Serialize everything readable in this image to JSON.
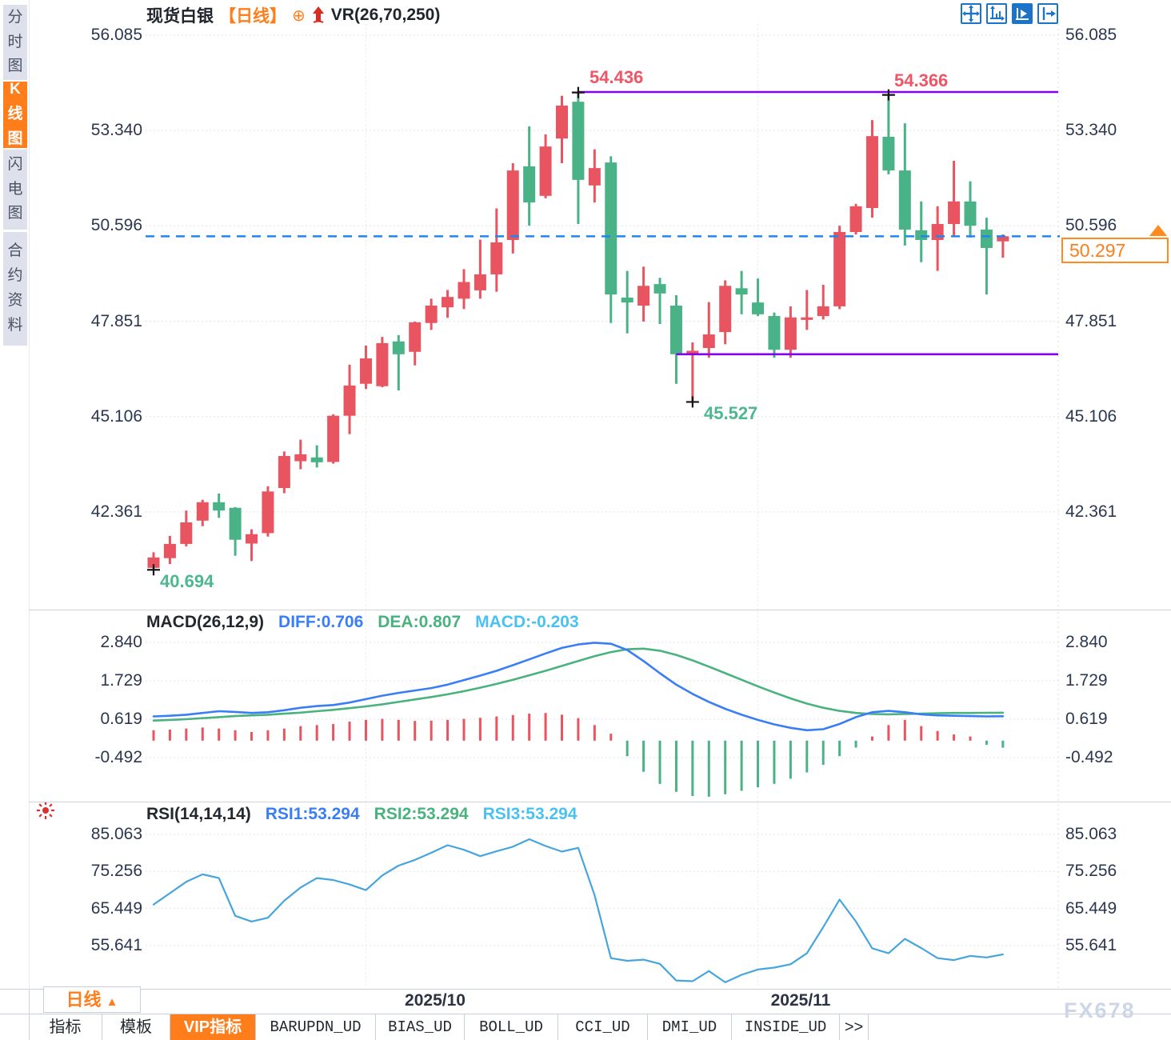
{
  "colors": {
    "up": "#e8545f",
    "down": "#49b286",
    "accent": "#ff7d1a",
    "trendline": "#8400f0",
    "last_price_line": "#1f86f0",
    "diff_line": "#3a7ef5",
    "dea_line": "#49b27e",
    "macd_value_text": "#49c2f2",
    "rsi_line": "#46a5dd",
    "annotation_high": "#f05565",
    "annotation_low": "#4db890"
  },
  "sidebar": {
    "items": [
      {
        "label": "分时图",
        "active": false
      },
      {
        "label": "K线图",
        "active": true
      },
      {
        "label": "闪电图",
        "active": false
      },
      {
        "label": "合约资料",
        "active": false
      }
    ]
  },
  "header": {
    "symbol": "现货白银",
    "period_tag": "【日线】",
    "plus_icon": "⊕",
    "indicator": "VR(26,70,250)"
  },
  "toolbar": {
    "icons": [
      "move-icon",
      "axis-range-icon",
      "axis-play-icon",
      "collapse-right-icon"
    ]
  },
  "price_tag": {
    "value": "50.297"
  },
  "bottom": {
    "period_label": "日线",
    "period_caret": "▲",
    "watermark": "FX678",
    "tabs": [
      {
        "label": "指标",
        "active": false
      },
      {
        "label": "模板",
        "active": false
      },
      {
        "label": "VIP指标",
        "active": true
      },
      {
        "label": "BARUPDN_UD",
        "active": false
      },
      {
        "label": "BIAS_UD",
        "active": false
      },
      {
        "label": "BOLL_UD",
        "active": false
      },
      {
        "label": "CCI_UD",
        "active": false
      },
      {
        "label": "DMI_UD",
        "active": false
      },
      {
        "label": "INSIDE_UD",
        "active": false
      },
      {
        "label": ">>",
        "active": false
      }
    ]
  },
  "chart_data": {
    "type": "candlestick",
    "title": "现货白银 日线",
    "main": {
      "yticks": [
        "56.085",
        "53.340",
        "50.596",
        "47.851",
        "45.106",
        "42.361"
      ],
      "ytick_values": [
        56.085,
        53.34,
        50.596,
        47.851,
        45.106,
        42.361
      ],
      "candles": [
        [
          40.75,
          41.2,
          40.694,
          41.05
        ],
        [
          41.03,
          41.67,
          40.86,
          41.44
        ],
        [
          41.44,
          42.4,
          41.37,
          42.06
        ],
        [
          42.11,
          42.71,
          41.95,
          42.64
        ],
        [
          42.64,
          42.89,
          42.19,
          42.4
        ],
        [
          42.48,
          42.5,
          41.1,
          41.56
        ],
        [
          41.45,
          41.86,
          40.95,
          41.72
        ],
        [
          41.75,
          43.1,
          41.65,
          42.95
        ],
        [
          43.05,
          44.1,
          42.9,
          43.97
        ],
        [
          43.82,
          44.44,
          43.59,
          44.02
        ],
        [
          43.93,
          44.28,
          43.64,
          43.79
        ],
        [
          43.8,
          45.17,
          43.75,
          45.13
        ],
        [
          45.13,
          46.6,
          44.6,
          46.0
        ],
        [
          46.05,
          47.15,
          45.9,
          46.78
        ],
        [
          45.98,
          47.4,
          45.95,
          47.22
        ],
        [
          47.27,
          47.45,
          45.86,
          46.9
        ],
        [
          46.97,
          47.84,
          46.58,
          47.82
        ],
        [
          47.8,
          48.5,
          47.6,
          48.3
        ],
        [
          48.25,
          48.75,
          47.95,
          48.55
        ],
        [
          48.5,
          49.35,
          48.2,
          48.98
        ],
        [
          48.74,
          50.2,
          48.5,
          49.2
        ],
        [
          49.2,
          51.1,
          48.7,
          50.12
        ],
        [
          50.19,
          52.4,
          49.8,
          52.19
        ],
        [
          52.31,
          53.46,
          50.6,
          51.27
        ],
        [
          51.46,
          53.23,
          51.39,
          52.88
        ],
        [
          53.11,
          54.34,
          52.4,
          54.06
        ],
        [
          54.17,
          54.436,
          50.65,
          51.92
        ],
        [
          51.76,
          52.8,
          51.27,
          52.26
        ],
        [
          52.42,
          52.6,
          47.8,
          48.62
        ],
        [
          48.53,
          49.3,
          47.5,
          48.39
        ],
        [
          48.3,
          49.42,
          47.84,
          48.87
        ],
        [
          48.92,
          49.1,
          47.77,
          48.65
        ],
        [
          48.3,
          48.6,
          46.05,
          46.9
        ],
        [
          46.9,
          47.24,
          45.527,
          47.0
        ],
        [
          47.08,
          48.4,
          46.8,
          47.47
        ],
        [
          47.54,
          49.03,
          47.19,
          48.87
        ],
        [
          48.8,
          49.3,
          48.05,
          48.62
        ],
        [
          48.39,
          49.08,
          48.0,
          48.05
        ],
        [
          48.0,
          48.1,
          46.8,
          47.03
        ],
        [
          47.03,
          48.28,
          46.8,
          47.96
        ],
        [
          47.89,
          48.75,
          47.6,
          47.96
        ],
        [
          48.0,
          48.9,
          47.9,
          48.28
        ],
        [
          48.28,
          50.6,
          48.2,
          50.42
        ],
        [
          50.42,
          51.23,
          50.35,
          51.16
        ],
        [
          51.11,
          53.64,
          50.83,
          53.18
        ],
        [
          53.16,
          54.366,
          52.08,
          52.19
        ],
        [
          52.19,
          53.55,
          50.03,
          50.49
        ],
        [
          50.47,
          51.3,
          49.55,
          50.19
        ],
        [
          50.19,
          51.16,
          49.3,
          50.65
        ],
        [
          50.65,
          52.47,
          50.3,
          51.3
        ],
        [
          51.3,
          51.88,
          50.26,
          50.6
        ],
        [
          50.49,
          50.83,
          48.62,
          49.96
        ],
        [
          50.15,
          50.35,
          49.68,
          50.297
        ]
      ],
      "annotations": [
        {
          "text": "54.436",
          "price": 54.436,
          "index": 26,
          "kind": "high"
        },
        {
          "text": "54.366",
          "price": 54.366,
          "index": 45,
          "kind": "high"
        },
        {
          "text": "45.527",
          "price": 45.527,
          "index": 33,
          "kind": "low"
        },
        {
          "text": "40.694",
          "price": 40.694,
          "index": 0,
          "kind": "low"
        }
      ],
      "resistance": {
        "price": 54.45,
        "from_index": 26
      },
      "support": {
        "price": 46.9,
        "from_index": 32
      },
      "last_price": 50.297
    },
    "macd": {
      "title": "MACD(26,12,9)",
      "diff_label": "DIFF:0.706",
      "dea_label": "DEA:0.807",
      "macd_label": "MACD:-0.203",
      "yticks": [
        "2.840",
        "1.729",
        "0.619",
        "-0.492"
      ],
      "ytick_values": [
        2.84,
        1.729,
        0.619,
        -0.492
      ],
      "diff": [
        0.7,
        0.72,
        0.75,
        0.8,
        0.85,
        0.83,
        0.8,
        0.82,
        0.88,
        0.95,
        1.0,
        1.03,
        1.1,
        1.2,
        1.3,
        1.38,
        1.45,
        1.52,
        1.62,
        1.75,
        1.88,
        2.02,
        2.18,
        2.35,
        2.52,
        2.68,
        2.78,
        2.83,
        2.8,
        2.62,
        2.3,
        1.95,
        1.62,
        1.35,
        1.12,
        0.92,
        0.75,
        0.6,
        0.47,
        0.37,
        0.3,
        0.33,
        0.48,
        0.68,
        0.82,
        0.86,
        0.82,
        0.76,
        0.73,
        0.72,
        0.71,
        0.7,
        0.706
      ],
      "dea": [
        0.58,
        0.6,
        0.62,
        0.65,
        0.68,
        0.71,
        0.73,
        0.75,
        0.78,
        0.81,
        0.85,
        0.89,
        0.94,
        0.99,
        1.05,
        1.12,
        1.19,
        1.26,
        1.34,
        1.43,
        1.53,
        1.64,
        1.76,
        1.89,
        2.02,
        2.16,
        2.3,
        2.44,
        2.56,
        2.64,
        2.66,
        2.6,
        2.48,
        2.32,
        2.14,
        1.95,
        1.76,
        1.57,
        1.39,
        1.22,
        1.07,
        0.95,
        0.86,
        0.8,
        0.77,
        0.76,
        0.77,
        0.78,
        0.79,
        0.8,
        0.8,
        0.805,
        0.807
      ],
      "hist": [
        0.3,
        0.32,
        0.35,
        0.38,
        0.35,
        0.3,
        0.25,
        0.3,
        0.35,
        0.42,
        0.45,
        0.48,
        0.55,
        0.6,
        0.63,
        0.6,
        0.57,
        0.58,
        0.6,
        0.63,
        0.66,
        0.7,
        0.74,
        0.78,
        0.8,
        0.75,
        0.65,
        0.45,
        0.2,
        -0.45,
        -0.9,
        -1.25,
        -1.48,
        -1.6,
        -1.62,
        -1.55,
        -1.45,
        -1.35,
        -1.25,
        -1.1,
        -0.92,
        -0.7,
        -0.45,
        -0.2,
        0.12,
        0.45,
        0.6,
        0.42,
        0.28,
        0.18,
        0.12,
        -0.12,
        -0.203
      ]
    },
    "rsi": {
      "title": "RSI(14,14,14)",
      "rsi1_label": "RSI1:53.294",
      "rsi2_label": "RSI2:53.294",
      "rsi3_label": "RSI3:53.294",
      "yticks": [
        "85.063",
        "75.256",
        "65.449",
        "55.641"
      ],
      "ytick_values": [
        85.063,
        75.256,
        65.449,
        55.641
      ],
      "values": [
        66.5,
        69.5,
        72.5,
        74.5,
        73.5,
        63.5,
        62.0,
        63.0,
        67.5,
        71.0,
        73.5,
        73.0,
        71.8,
        70.3,
        74.2,
        76.8,
        78.3,
        80.2,
        82.2,
        81.0,
        79.3,
        80.6,
        81.8,
        83.8,
        82.0,
        80.5,
        81.5,
        69.0,
        52.3,
        51.6,
        51.9,
        50.8,
        46.4,
        46.2,
        48.9,
        45.9,
        47.9,
        49.3,
        49.8,
        50.7,
        53.6,
        60.5,
        67.8,
        62.0,
        54.9,
        53.6,
        57.4,
        55.0,
        52.3,
        51.8,
        52.9,
        52.5,
        53.294
      ]
    },
    "x_axis": {
      "labels": [
        "2025/10",
        "2025/11"
      ],
      "month_start_indices": [
        13,
        37
      ]
    }
  }
}
